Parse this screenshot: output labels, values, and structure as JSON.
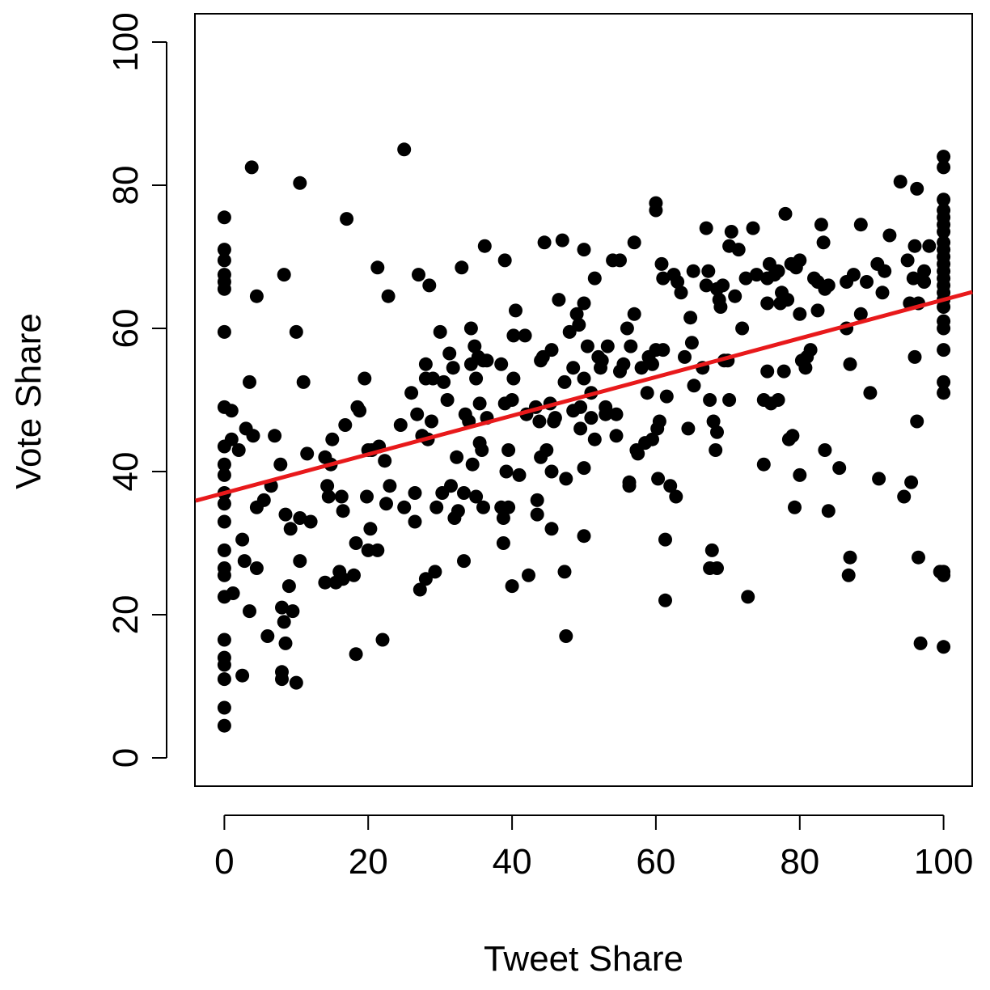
{
  "chart_data": {
    "type": "scatter",
    "title": "",
    "xlabel": "Tweet Share",
    "ylabel": "Vote Share",
    "xlim": [
      -4,
      104
    ],
    "ylim": [
      -4,
      104
    ],
    "xticks": [
      "0",
      "20",
      "40",
      "60",
      "80",
      "100"
    ],
    "yticks": [
      "0",
      "20",
      "40",
      "60",
      "80",
      "100"
    ],
    "grid": false,
    "point_color": "#000000",
    "fit_line": {
      "color": "#e8191b",
      "intercept": 37.0,
      "slope": 0.27
    },
    "points": [
      [
        0,
        4.5
      ],
      [
        0,
        7
      ],
      [
        0,
        11
      ],
      [
        0,
        13
      ],
      [
        0,
        14
      ],
      [
        0,
        16.5
      ],
      [
        0,
        22.5
      ],
      [
        0,
        25.5
      ],
      [
        0,
        26.5
      ],
      [
        0,
        29
      ],
      [
        0,
        33
      ],
      [
        0,
        35.5
      ],
      [
        0,
        37
      ],
      [
        0,
        39.5
      ],
      [
        0,
        41
      ],
      [
        0,
        43.5
      ],
      [
        0,
        49
      ],
      [
        0,
        59.5
      ],
      [
        0,
        65.5
      ],
      [
        0,
        66.5
      ],
      [
        0,
        67.5
      ],
      [
        0,
        69.5
      ],
      [
        0,
        71
      ],
      [
        0,
        75.5
      ],
      [
        1,
        44.5
      ],
      [
        1,
        48.5
      ],
      [
        1.2,
        23
      ],
      [
        2,
        43
      ],
      [
        2.5,
        30.5
      ],
      [
        2.5,
        11.5
      ],
      [
        2.8,
        27.5
      ],
      [
        3,
        46
      ],
      [
        3.5,
        20.5
      ],
      [
        3.5,
        52.5
      ],
      [
        3.8,
        82.5
      ],
      [
        4,
        45
      ],
      [
        4.5,
        35
      ],
      [
        4.5,
        26.5
      ],
      [
        4.5,
        64.5
      ],
      [
        5.5,
        36
      ],
      [
        6,
        17
      ],
      [
        6.5,
        38
      ],
      [
        7,
        45
      ],
      [
        7.8,
        41
      ],
      [
        8,
        21
      ],
      [
        8,
        11
      ],
      [
        8,
        12
      ],
      [
        8.3,
        19
      ],
      [
        8.3,
        67.5
      ],
      [
        8.5,
        16
      ],
      [
        8.5,
        34
      ],
      [
        9,
        24
      ],
      [
        9.2,
        32
      ],
      [
        9.5,
        20.5
      ],
      [
        10,
        59.5
      ],
      [
        10,
        10.5
      ],
      [
        10.5,
        33.5
      ],
      [
        10.5,
        27.5
      ],
      [
        10.5,
        80.3
      ],
      [
        11,
        52.5
      ],
      [
        11.5,
        42.5
      ],
      [
        12,
        33
      ],
      [
        14,
        42
      ],
      [
        14,
        24.5
      ],
      [
        14.3,
        38
      ],
      [
        14.5,
        36.5
      ],
      [
        14.8,
        41
      ],
      [
        15,
        44.5
      ],
      [
        15.5,
        24.5
      ],
      [
        16,
        26
      ],
      [
        16.3,
        36.5
      ],
      [
        16.5,
        25
      ],
      [
        16.5,
        34.5
      ],
      [
        16.8,
        46.5
      ],
      [
        17,
        75.3
      ],
      [
        18,
        25.5
      ],
      [
        18.3,
        30
      ],
      [
        18.3,
        14.5
      ],
      [
        18.5,
        49
      ],
      [
        18.8,
        48.5
      ],
      [
        19.5,
        53
      ],
      [
        19.8,
        36.5
      ],
      [
        20,
        43
      ],
      [
        20,
        29
      ],
      [
        20.3,
        32
      ],
      [
        20.5,
        43
      ],
      [
        21.3,
        29
      ],
      [
        21.3,
        68.5
      ],
      [
        21.5,
        43.5
      ],
      [
        22,
        16.5
      ],
      [
        22.3,
        41.5
      ],
      [
        22.5,
        35.5
      ],
      [
        22.8,
        64.5
      ],
      [
        23,
        38
      ],
      [
        24.5,
        46.5
      ],
      [
        25,
        85
      ],
      [
        25,
        35
      ],
      [
        26,
        51
      ],
      [
        26.5,
        37
      ],
      [
        26.5,
        33
      ],
      [
        26.8,
        48
      ],
      [
        27,
        67.5
      ],
      [
        27.2,
        23.5
      ],
      [
        27.5,
        45
      ],
      [
        28,
        53
      ],
      [
        28,
        25
      ],
      [
        28,
        55
      ],
      [
        28.3,
        44.5
      ],
      [
        28.5,
        66
      ],
      [
        28.8,
        47
      ],
      [
        29,
        53
      ],
      [
        29.3,
        26
      ],
      [
        29.5,
        35
      ],
      [
        30,
        59.5
      ],
      [
        30.3,
        37
      ],
      [
        30.5,
        52.5
      ],
      [
        31,
        50
      ],
      [
        31.3,
        56.5
      ],
      [
        31.5,
        38
      ],
      [
        31.8,
        54.5
      ],
      [
        32,
        33.5
      ],
      [
        32.3,
        42
      ],
      [
        32.5,
        34.5
      ],
      [
        33,
        68.5
      ],
      [
        33.3,
        27.5
      ],
      [
        33.3,
        37
      ],
      [
        33.5,
        48
      ],
      [
        34,
        47
      ],
      [
        34.3,
        60
      ],
      [
        34.3,
        55
      ],
      [
        34.5,
        41
      ],
      [
        34.8,
        57.5
      ],
      [
        35,
        36.5
      ],
      [
        35,
        53
      ],
      [
        35.3,
        56
      ],
      [
        35.5,
        44
      ],
      [
        35.5,
        49.5
      ],
      [
        35.8,
        43
      ],
      [
        36,
        35
      ],
      [
        36,
        55.5
      ],
      [
        36.2,
        71.5
      ],
      [
        36.5,
        47.5
      ],
      [
        36.5,
        55.5
      ],
      [
        38.5,
        35
      ],
      [
        38.5,
        55
      ],
      [
        38.8,
        33.5
      ],
      [
        38.8,
        30
      ],
      [
        39,
        49.5
      ],
      [
        39,
        69.5
      ],
      [
        39.2,
        40
      ],
      [
        39.5,
        35
      ],
      [
        39.5,
        43
      ],
      [
        40,
        24
      ],
      [
        40,
        50
      ],
      [
        40.2,
        59
      ],
      [
        40.2,
        53
      ],
      [
        40.5,
        62.5
      ],
      [
        41,
        39.5
      ],
      [
        41.8,
        59
      ],
      [
        42,
        48
      ],
      [
        42.3,
        25.5
      ],
      [
        43.3,
        49
      ],
      [
        43.5,
        34
      ],
      [
        43.5,
        36
      ],
      [
        43.8,
        47
      ],
      [
        44,
        55.5
      ],
      [
        44,
        42
      ],
      [
        44.3,
        56
      ],
      [
        44.5,
        72
      ],
      [
        44.8,
        43
      ],
      [
        45.3,
        49.5
      ],
      [
        45.5,
        57
      ],
      [
        45.5,
        40
      ],
      [
        45.5,
        32
      ],
      [
        45.8,
        47
      ],
      [
        46,
        47.5
      ],
      [
        46.5,
        64
      ],
      [
        47,
        72.3
      ],
      [
        47.3,
        26
      ],
      [
        47.3,
        52.5
      ],
      [
        47.5,
        39
      ],
      [
        47.5,
        17
      ],
      [
        48,
        59.5
      ],
      [
        48.5,
        48.5
      ],
      [
        48.5,
        54.5
      ],
      [
        49,
        62
      ],
      [
        49.3,
        60.5
      ],
      [
        49.5,
        46
      ],
      [
        49.5,
        49
      ],
      [
        50,
        63.5
      ],
      [
        50,
        71
      ],
      [
        50,
        40.5
      ],
      [
        50,
        31
      ],
      [
        50,
        53
      ],
      [
        50.5,
        57.5
      ],
      [
        51,
        51
      ],
      [
        51,
        47.5
      ],
      [
        51.5,
        44.5
      ],
      [
        51.5,
        67
      ],
      [
        52,
        56
      ],
      [
        52.3,
        54.5
      ],
      [
        52.5,
        55.5
      ],
      [
        53,
        49
      ],
      [
        53,
        48
      ],
      [
        53.3,
        57.5
      ],
      [
        54,
        69.5
      ],
      [
        54.5,
        48
      ],
      [
        54.5,
        45
      ],
      [
        55,
        69.5
      ],
      [
        55,
        54
      ],
      [
        55.5,
        55
      ],
      [
        56,
        60
      ],
      [
        56.3,
        38.5
      ],
      [
        56.3,
        38
      ],
      [
        56.5,
        57.5
      ],
      [
        57,
        62
      ],
      [
        57,
        72
      ],
      [
        57.3,
        43
      ],
      [
        57.5,
        42.5
      ],
      [
        58,
        54.5
      ],
      [
        58.5,
        44
      ],
      [
        58.8,
        51
      ],
      [
        59,
        56
      ],
      [
        59.5,
        55
      ],
      [
        59.5,
        44.5
      ],
      [
        60,
        57
      ],
      [
        60,
        77.5
      ],
      [
        60,
        76.5
      ],
      [
        60.2,
        46
      ],
      [
        60.3,
        39
      ],
      [
        60.5,
        47
      ],
      [
        60.8,
        69
      ],
      [
        61,
        67
      ],
      [
        61,
        57
      ],
      [
        61.3,
        22
      ],
      [
        61.3,
        30.5
      ],
      [
        61.5,
        50.5
      ],
      [
        62,
        38
      ],
      [
        62.5,
        67.5
      ],
      [
        62.8,
        36.5
      ],
      [
        63,
        66.5
      ],
      [
        63.5,
        65
      ],
      [
        64,
        56
      ],
      [
        64.5,
        46
      ],
      [
        64.8,
        61.5
      ],
      [
        65,
        58
      ],
      [
        65.2,
        68
      ],
      [
        65.3,
        52
      ],
      [
        66.5,
        54.5
      ],
      [
        67,
        74
      ],
      [
        67,
        66
      ],
      [
        67.3,
        68
      ],
      [
        67.5,
        26.5
      ],
      [
        67.5,
        50
      ],
      [
        67.8,
        29
      ],
      [
        68,
        47
      ],
      [
        68.3,
        43
      ],
      [
        68.5,
        26.5
      ],
      [
        68.5,
        45.5
      ],
      [
        68.5,
        65.5
      ],
      [
        68.8,
        64
      ],
      [
        69,
        63
      ],
      [
        69.3,
        66
      ],
      [
        69.5,
        55.5
      ],
      [
        70,
        55.5
      ],
      [
        70.2,
        71.5
      ],
      [
        70.2,
        50
      ],
      [
        70.5,
        73.5
      ],
      [
        71,
        64.5
      ],
      [
        71.5,
        71
      ],
      [
        72,
        60
      ],
      [
        72.5,
        67
      ],
      [
        72.8,
        22.5
      ],
      [
        73.5,
        74
      ],
      [
        74,
        67.5
      ],
      [
        75,
        50
      ],
      [
        75,
        41
      ],
      [
        75.5,
        63.5
      ],
      [
        75.5,
        67
      ],
      [
        75.5,
        54
      ],
      [
        75.8,
        69
      ],
      [
        76,
        49.5
      ],
      [
        76.5,
        67.5
      ],
      [
        77,
        68
      ],
      [
        77,
        50
      ],
      [
        77.3,
        63.5
      ],
      [
        77.5,
        65
      ],
      [
        77.8,
        54
      ],
      [
        78,
        76
      ],
      [
        78.3,
        64
      ],
      [
        78.5,
        44.5
      ],
      [
        78.8,
        69
      ],
      [
        79,
        45
      ],
      [
        79.3,
        35
      ],
      [
        79.5,
        68.5
      ],
      [
        80,
        39.5
      ],
      [
        80,
        62
      ],
      [
        80,
        69.5
      ],
      [
        80.3,
        55.5
      ],
      [
        80.8,
        54.5
      ],
      [
        81,
        56
      ],
      [
        81.5,
        57
      ],
      [
        82,
        67
      ],
      [
        82.5,
        66.5
      ],
      [
        82.5,
        62.5
      ],
      [
        83,
        74.5
      ],
      [
        83.3,
        72
      ],
      [
        83.5,
        65.5
      ],
      [
        83.5,
        43
      ],
      [
        84,
        34.5
      ],
      [
        84,
        66
      ],
      [
        85.5,
        40.5
      ],
      [
        86.5,
        66.5
      ],
      [
        86.5,
        60
      ],
      [
        86.8,
        25.5
      ],
      [
        87,
        55
      ],
      [
        87,
        28
      ],
      [
        87.5,
        67.5
      ],
      [
        88.5,
        62
      ],
      [
        88.5,
        74.5
      ],
      [
        89.3,
        66.5
      ],
      [
        89.8,
        51
      ],
      [
        90.8,
        69
      ],
      [
        91,
        39
      ],
      [
        91.5,
        65
      ],
      [
        91.8,
        68
      ],
      [
        92.5,
        73
      ],
      [
        94,
        80.5
      ],
      [
        94.5,
        36.5
      ],
      [
        95,
        69.5
      ],
      [
        95.3,
        63.5
      ],
      [
        95.5,
        38.5
      ],
      [
        95.8,
        67
      ],
      [
        96,
        56
      ],
      [
        96,
        71.5
      ],
      [
        96.3,
        47
      ],
      [
        96.3,
        79.5
      ],
      [
        96.5,
        28
      ],
      [
        96.5,
        63.5
      ],
      [
        96.8,
        16
      ],
      [
        97.3,
        68
      ],
      [
        97.3,
        66.5
      ],
      [
        98,
        71.5
      ],
      [
        100,
        84
      ],
      [
        100,
        82.5
      ],
      [
        100,
        78
      ],
      [
        100,
        76.5
      ],
      [
        100,
        75.5
      ],
      [
        100,
        74.5
      ],
      [
        100,
        73.5
      ],
      [
        100,
        72
      ],
      [
        100,
        71
      ],
      [
        100,
        70
      ],
      [
        100,
        69
      ],
      [
        100,
        68
      ],
      [
        100,
        67
      ],
      [
        100,
        66
      ],
      [
        100,
        65
      ],
      [
        100,
        64
      ],
      [
        100,
        63
      ],
      [
        100,
        61
      ],
      [
        100,
        60
      ],
      [
        100,
        57
      ],
      [
        100,
        52.5
      ],
      [
        100,
        51
      ],
      [
        100,
        26
      ],
      [
        100,
        25.5
      ],
      [
        100,
        15.5
      ],
      [
        99.5,
        26
      ]
    ]
  }
}
